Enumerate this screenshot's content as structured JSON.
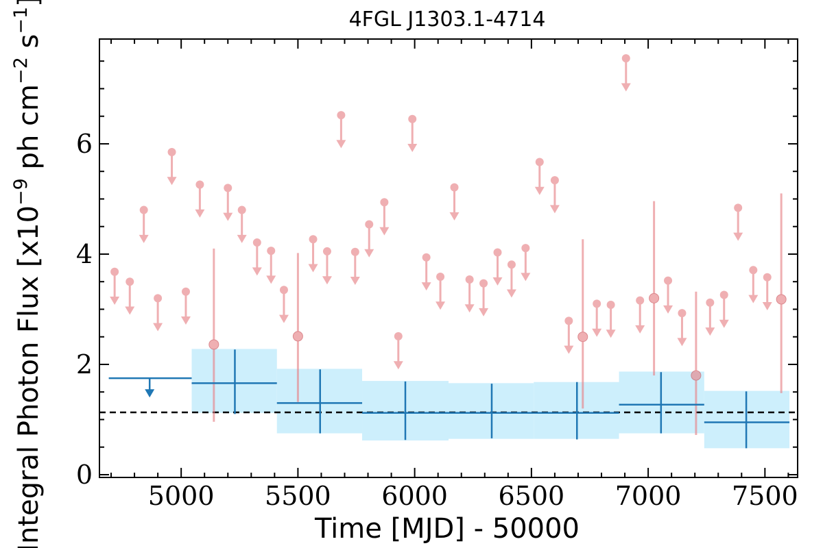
{
  "chart_data": {
    "type": "scatter",
    "title": "4FGL J1303.1-4714",
    "xlabel": "Time [MJD] - 50000",
    "ylabel": "Integral Photon Flux [x10$^{-9}$ ph cm$^{-2}$ s$^{-1}$]",
    "ylabel_parts": {
      "base": "Integral Photon Flux [x10",
      "exp1": "−9",
      "mid": " ph cm",
      "exp2": "−2",
      "mid2": " s",
      "exp3": "−1",
      "end": "]"
    },
    "xlim": [
      4650,
      7640
    ],
    "ylim": [
      -0.05,
      7.9
    ],
    "x_ticks": [
      5000,
      5500,
      6000,
      6500,
      7000,
      7500
    ],
    "x_tick_labels": [
      "5000",
      "5500",
      "6000",
      "6500",
      "7000",
      "7500"
    ],
    "y_ticks": [
      0,
      2,
      4,
      6
    ],
    "y_tick_labels": [
      "0",
      "2",
      "4",
      "6"
    ],
    "reference_level": 1.13,
    "short_bins_upper_limits": [
      {
        "x": 4715,
        "y": 3.68
      },
      {
        "x": 4780,
        "y": 3.5
      },
      {
        "x": 4840,
        "y": 4.8
      },
      {
        "x": 4900,
        "y": 3.2
      },
      {
        "x": 4960,
        "y": 5.85
      },
      {
        "x": 5020,
        "y": 3.32
      },
      {
        "x": 5080,
        "y": 5.26
      },
      {
        "x": 5200,
        "y": 5.2
      },
      {
        "x": 5260,
        "y": 4.8
      },
      {
        "x": 5325,
        "y": 4.21
      },
      {
        "x": 5385,
        "y": 4.06
      },
      {
        "x": 5440,
        "y": 3.35
      },
      {
        "x": 5565,
        "y": 4.27
      },
      {
        "x": 5625,
        "y": 4.05
      },
      {
        "x": 5745,
        "y": 4.04
      },
      {
        "x": 5685,
        "y": 6.52
      },
      {
        "x": 5805,
        "y": 4.54
      },
      {
        "x": 5870,
        "y": 4.94
      },
      {
        "x": 5930,
        "y": 2.51
      },
      {
        "x": 5990,
        "y": 6.45
      },
      {
        "x": 6050,
        "y": 3.94
      },
      {
        "x": 6110,
        "y": 3.59
      },
      {
        "x": 6170,
        "y": 5.21
      },
      {
        "x": 6235,
        "y": 3.54
      },
      {
        "x": 6295,
        "y": 3.47
      },
      {
        "x": 6355,
        "y": 4.03
      },
      {
        "x": 6415,
        "y": 3.81
      },
      {
        "x": 6475,
        "y": 4.11
      },
      {
        "x": 6535,
        "y": 5.67
      },
      {
        "x": 6600,
        "y": 5.34
      },
      {
        "x": 6660,
        "y": 2.79
      },
      {
        "x": 6780,
        "y": 3.1
      },
      {
        "x": 6840,
        "y": 3.08
      },
      {
        "x": 6905,
        "y": 7.55
      },
      {
        "x": 6965,
        "y": 3.16
      },
      {
        "x": 7085,
        "y": 3.52
      },
      {
        "x": 7145,
        "y": 2.93
      },
      {
        "x": 7265,
        "y": 3.12
      },
      {
        "x": 7325,
        "y": 3.26
      },
      {
        "x": 7385,
        "y": 4.84
      },
      {
        "x": 7450,
        "y": 3.71
      },
      {
        "x": 7510,
        "y": 3.58
      }
    ],
    "short_bins_detections": [
      {
        "x": 5140,
        "y": 2.36,
        "ylo": 0.96,
        "yhi": 4.1
      },
      {
        "x": 5500,
        "y": 2.51,
        "ylo": 1.32,
        "yhi": 4.02
      },
      {
        "x": 6720,
        "y": 2.5,
        "ylo": 1.2,
        "yhi": 4.27
      },
      {
        "x": 7025,
        "y": 3.2,
        "ylo": 1.8,
        "yhi": 4.96
      },
      {
        "x": 7205,
        "y": 1.8,
        "ylo": 0.72,
        "yhi": 3.32
      },
      {
        "x": 7570,
        "y": 3.18,
        "ylo": 1.48,
        "yhi": 5.1
      }
    ],
    "long_bins_upper_limits": [
      {
        "x": 4865,
        "xlo": 4690,
        "xhi": 5045,
        "y": 1.75
      }
    ],
    "long_bins_detections": [
      {
        "x": 5230,
        "xlo": 5045,
        "xhi": 5410,
        "y": 1.66,
        "ylo": 1.1,
        "yhi": 2.27,
        "band_lo": 1.12,
        "band_hi": 2.28
      },
      {
        "x": 5595,
        "xlo": 5410,
        "xhi": 5775,
        "y": 1.3,
        "ylo": 0.75,
        "yhi": 1.91,
        "band_lo": 0.75,
        "band_hi": 1.92
      },
      {
        "x": 5960,
        "xlo": 5775,
        "xhi": 6145,
        "y": 1.12,
        "ylo": 0.63,
        "yhi": 1.69,
        "band_lo": 0.62,
        "band_hi": 1.7
      },
      {
        "x": 6330,
        "xlo": 6145,
        "xhi": 6510,
        "y": 1.12,
        "ylo": 0.66,
        "yhi": 1.65,
        "band_lo": 0.65,
        "band_hi": 1.66
      },
      {
        "x": 6695,
        "xlo": 6510,
        "xhi": 6875,
        "y": 1.12,
        "ylo": 0.64,
        "yhi": 1.68,
        "band_lo": 0.65,
        "band_hi": 1.68
      },
      {
        "x": 7055,
        "xlo": 6875,
        "xhi": 7240,
        "y": 1.27,
        "ylo": 0.75,
        "yhi": 1.86,
        "band_lo": 0.75,
        "band_hi": 1.87
      },
      {
        "x": 7420,
        "xlo": 7240,
        "xhi": 7605,
        "y": 0.95,
        "ylo": 0.48,
        "yhi": 1.51,
        "band_lo": 0.48,
        "band_hi": 1.52
      }
    ],
    "colors": {
      "short_bins": "#e8858a",
      "long_bins": "#1f77b4",
      "band_fill": "#cdeffc",
      "reference_line": "#000000"
    },
    "grid": false,
    "legend": "none"
  }
}
